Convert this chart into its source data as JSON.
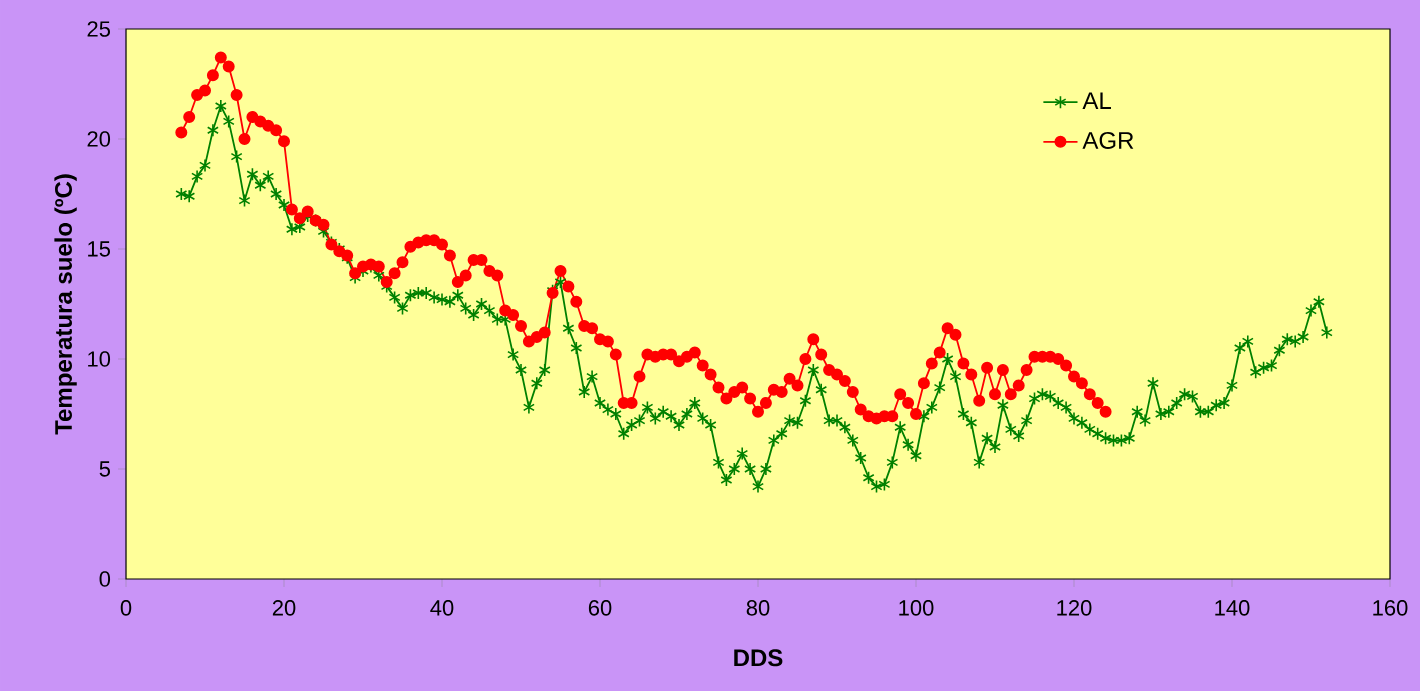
{
  "chart_data": {
    "type": "line",
    "xlabel": "DDS",
    "ylabel": "Temperatura suelo (ºC)",
    "x": [
      7,
      8,
      9,
      10,
      11,
      12,
      13,
      14,
      15,
      16,
      17,
      18,
      19,
      20,
      21,
      22,
      23,
      24,
      25,
      26,
      27,
      28,
      29,
      30,
      31,
      32,
      33,
      34,
      35,
      36,
      37,
      38,
      39,
      40,
      41,
      42,
      43,
      44,
      45,
      46,
      47,
      48,
      49,
      50,
      51,
      52,
      53,
      54,
      55,
      56,
      57,
      58,
      59,
      60,
      61,
      62,
      63,
      64,
      65,
      66,
      67,
      68,
      69,
      70,
      71,
      72,
      73,
      74,
      75,
      76,
      77,
      78,
      79,
      80,
      81,
      82,
      83,
      84,
      85,
      86,
      87,
      88,
      89,
      90,
      91,
      92,
      93,
      94,
      95,
      96,
      97,
      98,
      99,
      100,
      101,
      102,
      103,
      104,
      105,
      106,
      107,
      108,
      109,
      110,
      111,
      112,
      113,
      114,
      115,
      116,
      117,
      118,
      119,
      120,
      121,
      122,
      123,
      124,
      125,
      126,
      127,
      128,
      129,
      130,
      131,
      132,
      133,
      134,
      135,
      136,
      137,
      138,
      139,
      140,
      141,
      142,
      143,
      144,
      145,
      146,
      147,
      148,
      149,
      150,
      151,
      152
    ],
    "series": [
      {
        "name": "AL",
        "color": "#008000",
        "marker": "cross",
        "values": [
          17.5,
          17.4,
          18.3,
          18.8,
          20.4,
          21.5,
          20.8,
          19.2,
          17.2,
          18.4,
          17.9,
          18.3,
          17.5,
          17.0,
          15.9,
          16.0,
          16.5,
          16.3,
          15.8,
          15.3,
          15.0,
          14.6,
          13.7,
          14.0,
          14.2,
          13.8,
          13.3,
          12.8,
          12.3,
          12.9,
          13.0,
          13.0,
          12.8,
          12.7,
          12.6,
          12.9,
          12.3,
          12.0,
          12.5,
          12.2,
          11.8,
          11.8,
          10.2,
          9.5,
          7.8,
          8.9,
          9.5,
          13.1,
          13.5,
          11.4,
          10.5,
          8.5,
          9.2,
          8.0,
          7.7,
          7.5,
          6.6,
          7.0,
          7.2,
          7.8,
          7.3,
          7.6,
          7.4,
          7.0,
          7.5,
          8.0,
          7.3,
          7.0,
          5.3,
          4.5,
          5.0,
          5.7,
          5.0,
          4.2,
          5.0,
          6.3,
          6.6,
          7.2,
          7.1,
          8.1,
          9.5,
          8.6,
          7.2,
          7.2,
          6.9,
          6.3,
          5.5,
          4.6,
          4.2,
          4.3,
          5.3,
          6.9,
          6.1,
          5.6,
          7.4,
          7.8,
          8.7,
          10.0,
          9.2,
          7.5,
          7.1,
          5.3,
          6.4,
          6.0,
          7.9,
          6.8,
          6.5,
          7.2,
          8.2,
          8.4,
          8.3,
          8.0,
          7.8,
          7.3,
          7.1,
          6.8,
          6.6,
          6.4,
          6.3,
          6.3,
          6.4,
          7.6,
          7.2,
          8.9,
          7.5,
          7.6,
          8.0,
          8.4,
          8.3,
          7.6,
          7.6,
          7.9,
          8.0,
          8.8,
          10.5,
          10.8,
          9.4,
          9.6,
          9.7,
          10.4,
          10.9,
          10.8,
          11.0,
          12.2,
          12.6,
          11.2
        ]
      },
      {
        "name": "AGR",
        "color": "#ff0000",
        "marker": "circle",
        "values": [
          20.3,
          21.0,
          22.0,
          22.2,
          22.9,
          23.7,
          23.3,
          22.0,
          20.0,
          21.0,
          20.8,
          20.6,
          20.4,
          19.9,
          16.8,
          16.4,
          16.7,
          16.3,
          16.1,
          15.2,
          14.9,
          14.7,
          13.9,
          14.2,
          14.3,
          14.2,
          13.5,
          13.9,
          14.4,
          15.1,
          15.3,
          15.4,
          15.4,
          15.2,
          14.7,
          13.5,
          13.8,
          14.5,
          14.5,
          14.0,
          13.8,
          12.2,
          12.0,
          11.5,
          10.8,
          11.0,
          11.2,
          13.0,
          14.0,
          13.3,
          12.6,
          11.5,
          11.4,
          10.9,
          10.8,
          10.2,
          8.0,
          8.0,
          9.2,
          10.2,
          10.1,
          10.2,
          10.2,
          9.9,
          10.1,
          10.3,
          9.7,
          9.3,
          8.7,
          8.2,
          8.5,
          8.7,
          8.2,
          7.6,
          8.0,
          8.6,
          8.5,
          9.1,
          8.8,
          10.0,
          10.9,
          10.2,
          9.5,
          9.3,
          9.0,
          8.5,
          7.7,
          7.4,
          7.3,
          7.4,
          7.4,
          8.4,
          8.0,
          7.5,
          8.9,
          9.8,
          10.3,
          11.4,
          11.1,
          9.8,
          9.3,
          8.1,
          9.6,
          8.4,
          9.5,
          8.4,
          8.8,
          9.5,
          10.1,
          10.1,
          10.1,
          10.0,
          9.7,
          9.2,
          8.9,
          8.4,
          8.0,
          7.6,
          null,
          null,
          null,
          null,
          null,
          null,
          null,
          null,
          null,
          null,
          null,
          null,
          null,
          null,
          null,
          null,
          null,
          null,
          null,
          null,
          null,
          null,
          null,
          null,
          null,
          null,
          null,
          null
        ]
      }
    ],
    "xlim": [
      0,
      160
    ],
    "xticks": [
      0,
      20,
      40,
      60,
      80,
      100,
      120,
      140,
      160
    ],
    "ylim": [
      0,
      25
    ],
    "yticks": [
      0,
      5,
      10,
      15,
      20,
      25
    ],
    "grid": false,
    "legend": "top right",
    "line_style": "solid"
  }
}
